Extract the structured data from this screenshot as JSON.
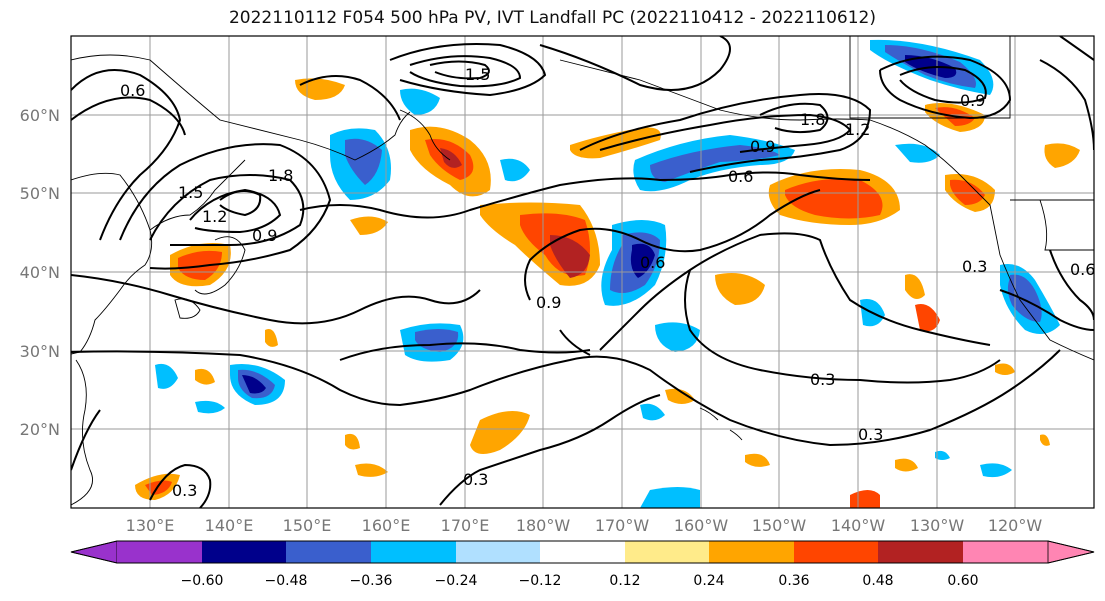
{
  "title": "2022110112 F054 500 hPa PV, IVT Landfall PC (2022110412 - 2022110612)",
  "lat_labels": [
    "60°N",
    "50°N",
    "40°N",
    "30°N",
    "20°N"
  ],
  "lon_labels": [
    "130°E",
    "140°E",
    "150°E",
    "160°E",
    "170°E",
    "180°W",
    "170°W",
    "160°W",
    "150°W",
    "140°W",
    "130°W",
    "120°W"
  ],
  "contour_labels": [
    "1.5",
    "0.9",
    "0.6",
    "1.8",
    "1.2",
    "0.3",
    "0.9",
    "0.6",
    "0.3"
  ],
  "colorbar": {
    "ticks": [
      "−0.60",
      "−0.48",
      "−0.36",
      "−0.24",
      "−0.12",
      "0.12",
      "0.24",
      "0.36",
      "0.48",
      "0.60"
    ],
    "colors": [
      "#9932cc",
      "#00008b",
      "#3a5fcd",
      "#00bfff",
      "#b0e0ff",
      "#ffffff",
      "#ffeb8a",
      "#ffa500",
      "#ff4500",
      "#b22222",
      "#ff85b3"
    ]
  }
}
